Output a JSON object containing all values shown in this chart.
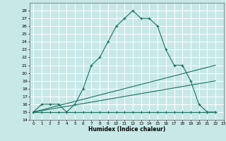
{
  "xlabel": "Humidex (Indice chaleur)",
  "background_color": "#c8e8e8",
  "grid_color": "#ffffff",
  "line_color": "#1a7060",
  "xlim": [
    -0.5,
    23
  ],
  "ylim": [
    14,
    29
  ],
  "xticks": [
    0,
    1,
    2,
    3,
    4,
    5,
    6,
    7,
    8,
    9,
    10,
    11,
    12,
    13,
    14,
    15,
    16,
    17,
    18,
    19,
    20,
    21,
    22,
    23
  ],
  "yticks": [
    14,
    15,
    16,
    17,
    18,
    19,
    20,
    21,
    22,
    23,
    24,
    25,
    26,
    27,
    28
  ],
  "series_main": {
    "x": [
      0,
      1,
      2,
      3,
      4,
      5,
      6,
      7,
      8,
      9,
      10,
      11,
      12,
      13,
      14,
      15,
      16,
      17,
      18,
      19,
      20,
      21,
      22
    ],
    "y": [
      15,
      16,
      16,
      16,
      15,
      16,
      18,
      21,
      22,
      24,
      26,
      27,
      28,
      27,
      27,
      26,
      23,
      21,
      21,
      19,
      16,
      15,
      15
    ]
  },
  "series_flat": {
    "x": [
      0,
      1,
      2,
      3,
      4,
      5,
      6,
      7,
      8,
      9,
      10,
      11,
      12,
      13,
      14,
      15,
      16,
      17,
      18,
      19,
      20,
      21,
      22
    ],
    "y": [
      15,
      15,
      15,
      15,
      15,
      15,
      15,
      15,
      15,
      15,
      15,
      15,
      15,
      15,
      15,
      15,
      15,
      15,
      15,
      15,
      15,
      15,
      15
    ]
  },
  "series_diag1": {
    "x": [
      0,
      22
    ],
    "y": [
      15,
      21
    ]
  },
  "series_diag2": {
    "x": [
      0,
      22
    ],
    "y": [
      15,
      19
    ]
  }
}
